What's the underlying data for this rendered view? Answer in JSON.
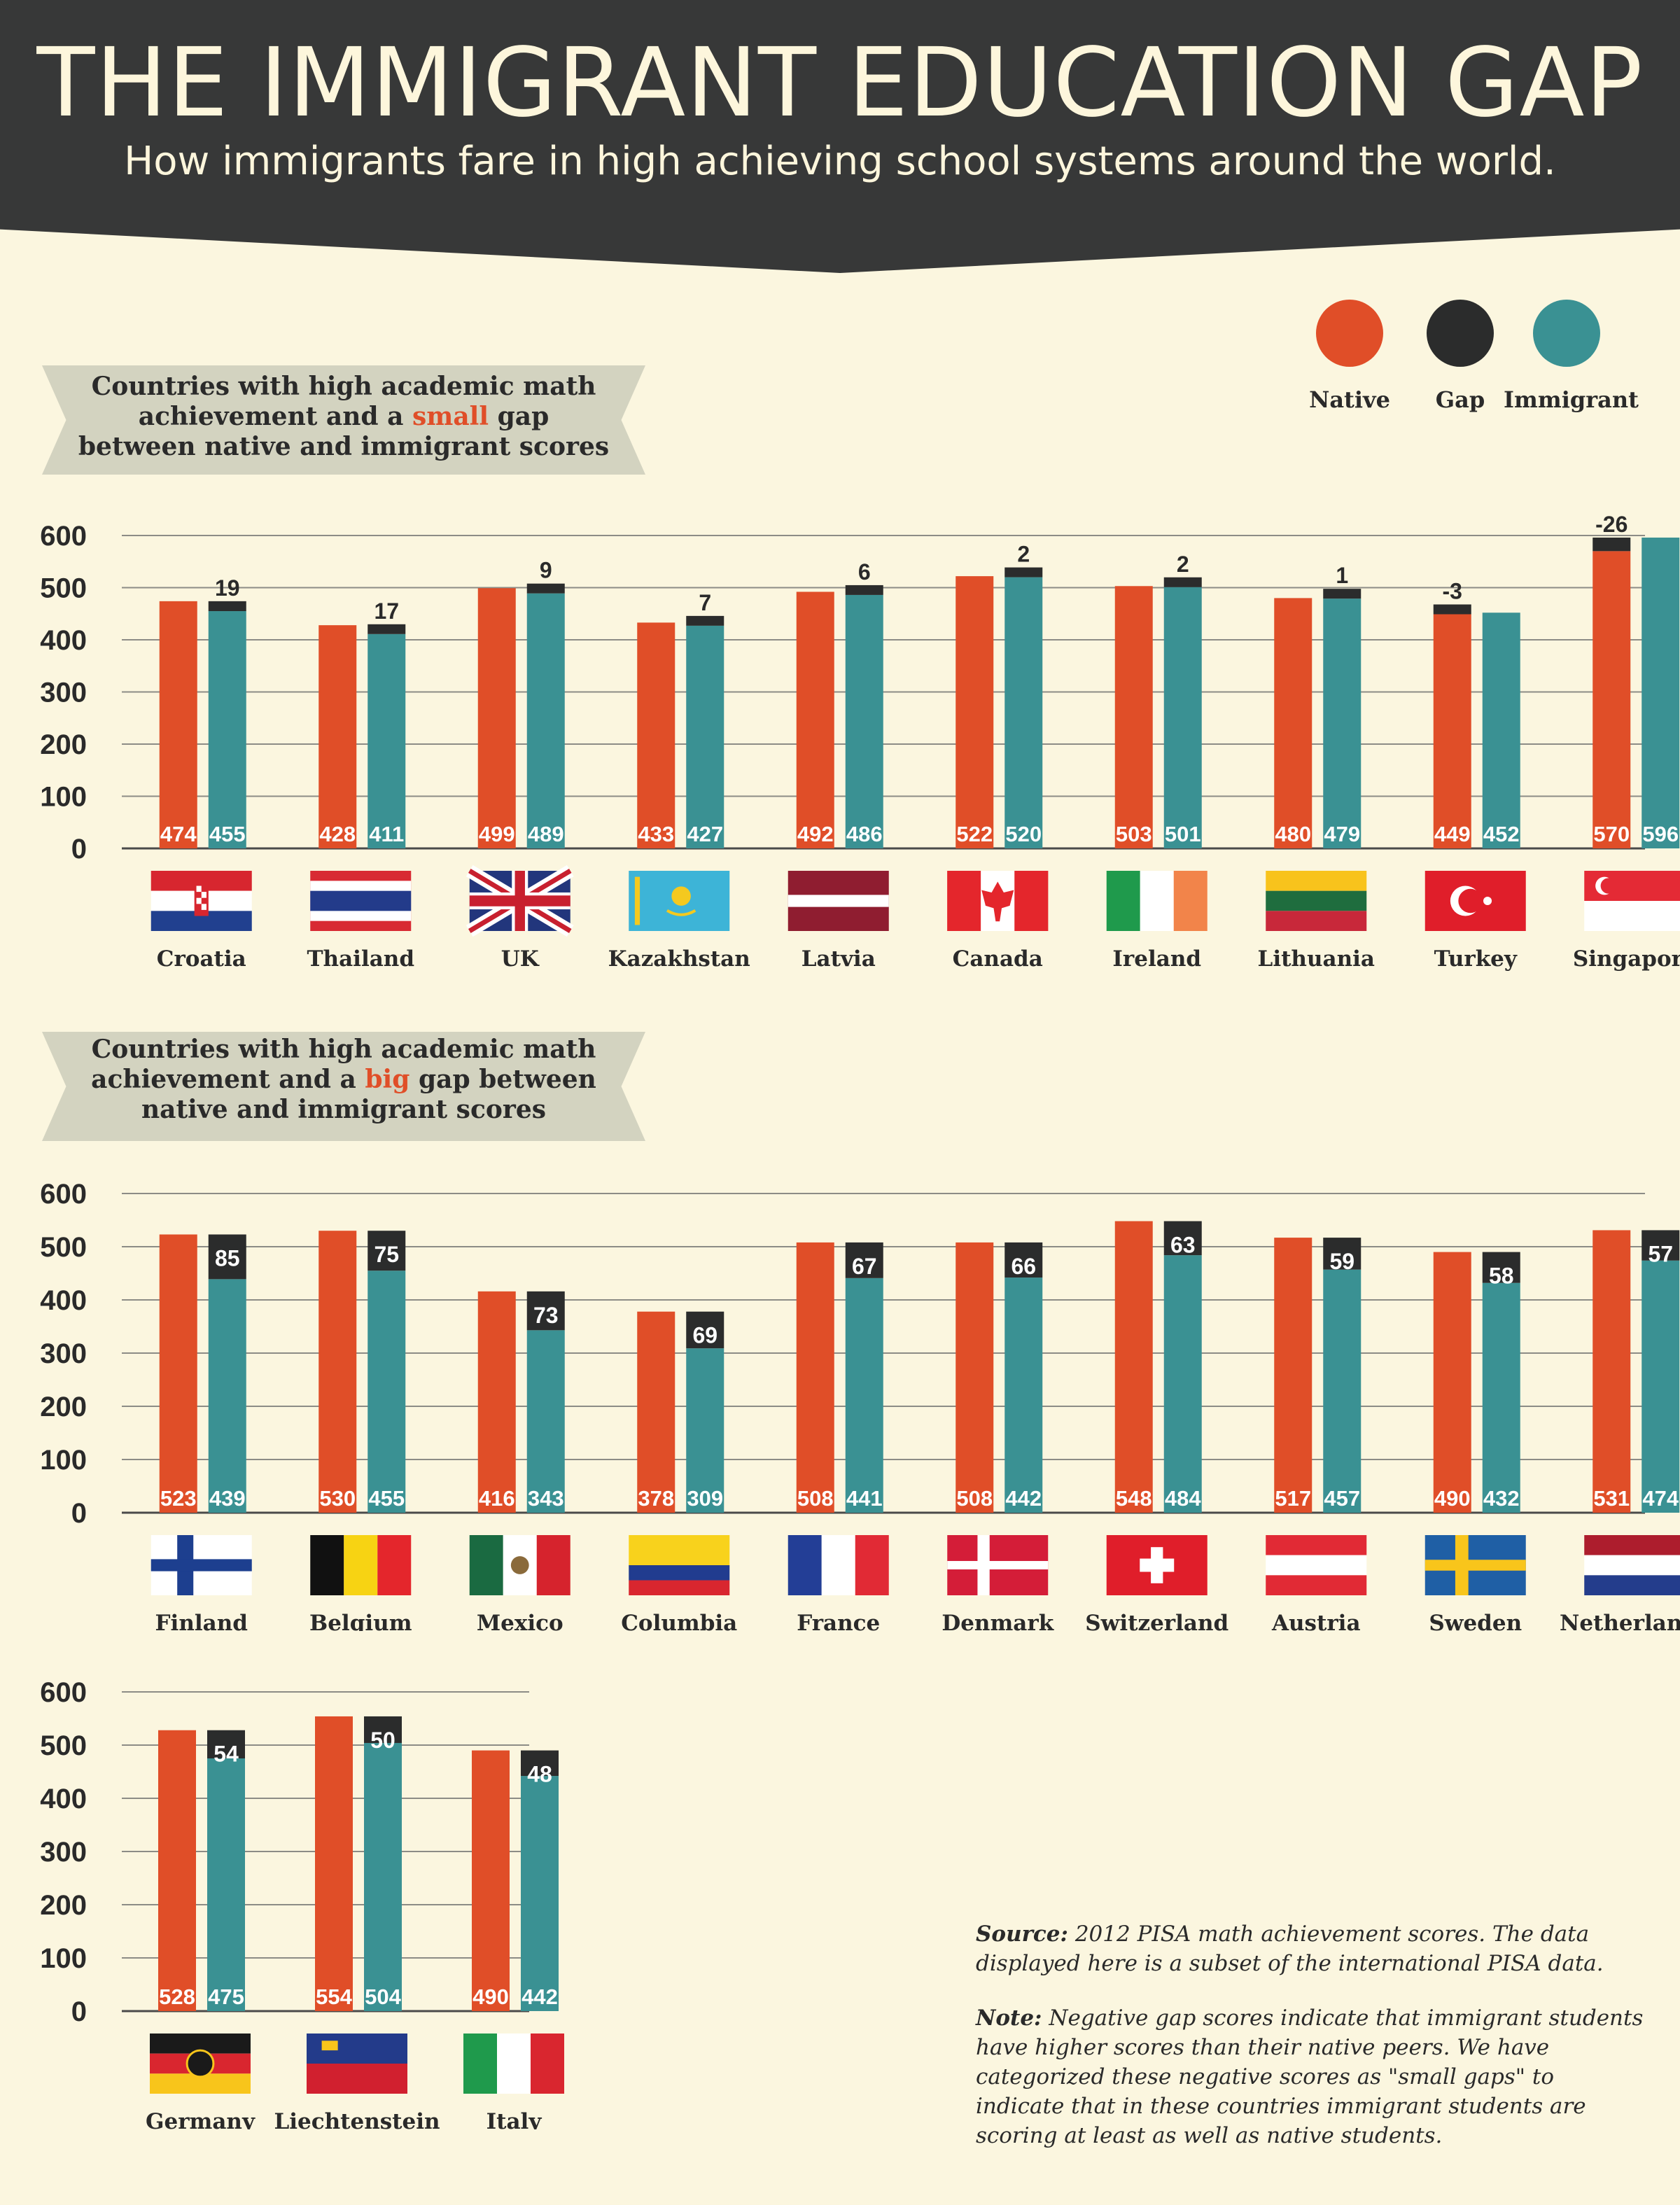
{
  "header": {
    "title": "THE IMMIGRANT EDUCATION GAP",
    "subtitle": "How immigrants fare in high achieving school systems around the world."
  },
  "legend": [
    {
      "label": "Native",
      "color": "#e04e28"
    },
    {
      "label": "Gap",
      "color": "#2b2c2c"
    },
    {
      "label": "Immigrant",
      "color": "#3a9193"
    }
  ],
  "colors": {
    "native": "#e04e28",
    "gap": "#2b2c2c",
    "immigrant": "#3a9193"
  },
  "sections": [
    {
      "before": "Countries with high academic math achievement and a ",
      "highlight": "small",
      "after": " gap between native and immigrant scores"
    },
    {
      "before": "Countries with high academic math achievement and a ",
      "highlight": "big",
      "after": " gap between native and immigrant scores"
    }
  ],
  "footer": {
    "source_label": "Source:",
    "source_text": " 2012 PISA math achievement scores.  The data displayed here is a subset of the international PISA data.",
    "note_label": "Note:",
    "note_text": " Negative gap scores indicate that immigrant students have higher scores than their native peers.  We have categorized these negative scores as \"small gaps\" to indicate that in these countries immigrant students are scoring at least as well as native students."
  },
  "chart_data": [
    {
      "type": "bar",
      "title": "Countries with high academic math achievement and a small gap between native and immigrant scores",
      "ylim": [
        0,
        600
      ],
      "yticks": [
        0,
        100,
        200,
        300,
        400,
        500,
        600
      ],
      "grid": true,
      "categories": [
        "Croatia",
        "Thailand",
        "UK",
        "Kazakhstan",
        "Latvia",
        "Canada",
        "Ireland",
        "Lithuania",
        "Turkey",
        "Singapore"
      ],
      "series": [
        {
          "name": "Native",
          "values": [
            474,
            428,
            499,
            433,
            492,
            522,
            503,
            480,
            449,
            570
          ]
        },
        {
          "name": "Immigrant",
          "values": [
            455,
            411,
            489,
            427,
            486,
            520,
            501,
            479,
            452,
            596
          ]
        },
        {
          "name": "Gap",
          "values": [
            19,
            17,
            9,
            7,
            6,
            2,
            2,
            1,
            -3,
            -26
          ]
        }
      ],
      "flags": [
        "croatia",
        "thailand",
        "uk",
        "kazakhstan",
        "latvia",
        "canada",
        "ireland",
        "lithuania",
        "turkey",
        "singapore"
      ]
    },
    {
      "type": "bar",
      "title": "Countries with high academic math achievement and a big gap between native and immigrant scores",
      "ylim": [
        0,
        600
      ],
      "yticks": [
        0,
        100,
        200,
        300,
        400,
        500,
        600
      ],
      "grid": true,
      "categories": [
        "Finland",
        "Belgium",
        "Mexico",
        "Columbia",
        "France",
        "Denmark",
        "Switzerland",
        "Austria",
        "Sweden",
        "Netherlands"
      ],
      "series": [
        {
          "name": "Native",
          "values": [
            523,
            530,
            416,
            378,
            508,
            508,
            548,
            517,
            490,
            531
          ]
        },
        {
          "name": "Immigrant",
          "values": [
            439,
            455,
            343,
            309,
            441,
            442,
            484,
            457,
            432,
            474
          ]
        },
        {
          "name": "Gap",
          "values": [
            85,
            75,
            73,
            69,
            67,
            66,
            63,
            59,
            58,
            57
          ]
        }
      ],
      "flags": [
        "finland",
        "belgium",
        "mexico",
        "columbia",
        "france",
        "denmark",
        "switzerland",
        "austria",
        "sweden",
        "netherlands"
      ]
    },
    {
      "type": "bar",
      "title": "Countries with high academic math achievement and a big gap between native and immigrant scores",
      "ylim": [
        0,
        600
      ],
      "yticks": [
        0,
        100,
        200,
        300,
        400,
        500,
        600
      ],
      "grid": true,
      "categories": [
        "Germany",
        "Liechtenstein",
        "Italy"
      ],
      "series": [
        {
          "name": "Native",
          "values": [
            528,
            554,
            490
          ]
        },
        {
          "name": "Immigrant",
          "values": [
            475,
            504,
            442
          ]
        },
        {
          "name": "Gap",
          "values": [
            54,
            50,
            48
          ]
        }
      ],
      "flags": [
        "germany",
        "liechtenstein",
        "italy"
      ]
    }
  ]
}
